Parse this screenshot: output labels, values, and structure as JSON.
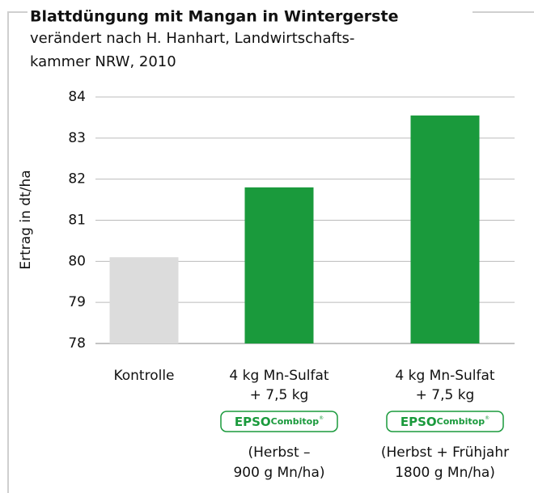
{
  "chart_data": {
    "type": "bar",
    "title": "Blattdüngung mit Mangan in Wintergerste",
    "subtitle": [
      "verändert nach H. Hanhart, Landwirtschafts-",
      "kammer NRW, 2010"
    ],
    "y_label": "Ertrag in dt/ha",
    "categories": [
      [
        "Kontrolle"
      ],
      [
        "4 kg Mn-Sulfat",
        "+ 7,5 kg"
      ],
      [
        "4 kg Mn-Sulfat",
        "+ 7,5 kg"
      ]
    ],
    "product_badges": [
      null,
      {
        "brand": "EPSO",
        "product": "Combitop",
        "mark": "®"
      },
      {
        "brand": "EPSO",
        "product": "Combitop",
        "mark": "®"
      }
    ],
    "category_details": [
      null,
      [
        "(Herbst –",
        "900 g Mn/ha)"
      ],
      [
        "(Herbst + Frühjahr",
        "1800 g Mn/ha)"
      ]
    ],
    "values": [
      80.1,
      81.8,
      83.55
    ],
    "colors": [
      "#dcdcdc",
      "#1a9a3c",
      "#1a9a3c"
    ],
    "ylim": [
      78,
      84
    ],
    "yticks": [
      78,
      79,
      80,
      81,
      82,
      83,
      84
    ],
    "grid": true
  }
}
